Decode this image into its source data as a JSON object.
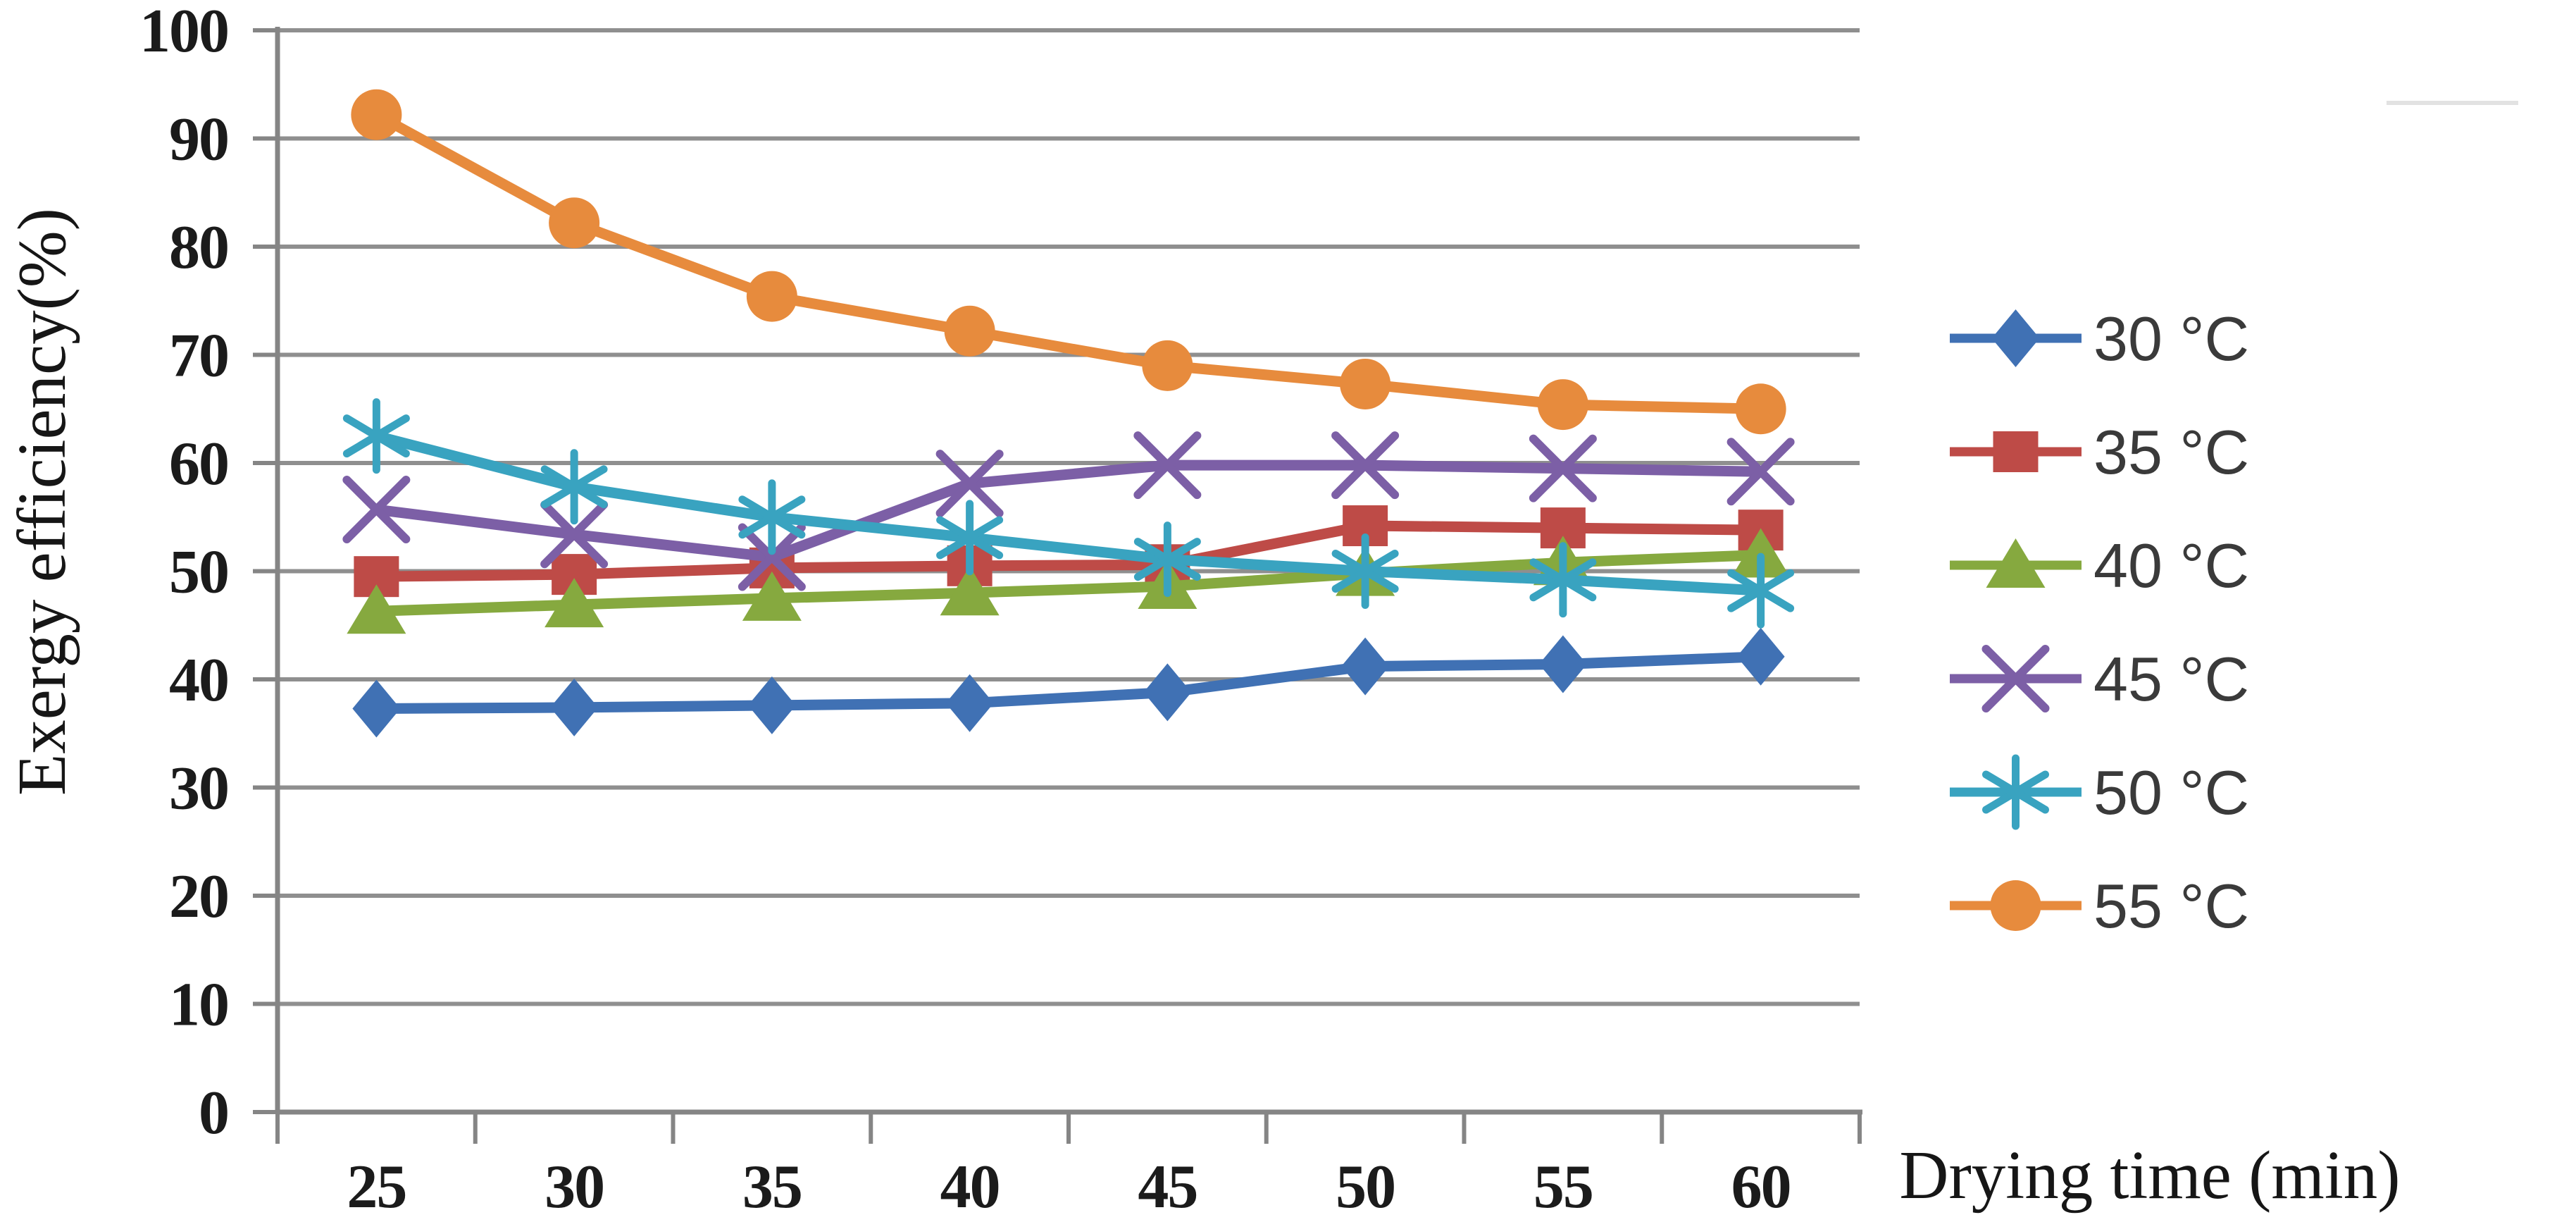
{
  "chart_data": {
    "type": "line",
    "title": "",
    "xlabel": "Drying time (min)",
    "ylabel": "Exergy efficiency(%)",
    "x_categories": [
      "25",
      "30",
      "35",
      "40",
      "45",
      "50",
      "55",
      "60"
    ],
    "y_ticks": [
      0,
      10,
      20,
      30,
      40,
      50,
      60,
      70,
      80,
      90,
      100
    ],
    "ylim": [
      0,
      100
    ],
    "grid": "horizontal",
    "legend_position": "right",
    "axis_color": "#858585",
    "gridline_color": "#8f8f8f",
    "tick_text_color": "#1b1b1b",
    "series": [
      {
        "name": "30 °C",
        "color": "#4071B4",
        "marker": "diamond",
        "values": [
          37.3,
          37.4,
          37.6,
          37.8,
          38.8,
          41.2,
          41.4,
          42.1
        ]
      },
      {
        "name": "35 °C",
        "color": "#BE4B47",
        "marker": "square",
        "values": [
          49.5,
          49.7,
          50.3,
          50.5,
          50.6,
          54.2,
          54.0,
          53.8
        ]
      },
      {
        "name": "40 °C",
        "color": "#86A93F",
        "marker": "triangle",
        "values": [
          46.3,
          46.9,
          47.5,
          48.0,
          48.6,
          49.8,
          50.8,
          51.5
        ]
      },
      {
        "name": "45 °C",
        "color": "#7C5FA6",
        "marker": "x",
        "values": [
          55.7,
          53.4,
          51.3,
          58.1,
          59.8,
          59.8,
          59.5,
          59.2
        ]
      },
      {
        "name": "50 °C",
        "color": "#39A3C0",
        "marker": "asterisk",
        "values": [
          62.5,
          57.8,
          55.0,
          53.1,
          51.1,
          50.0,
          49.2,
          48.2
        ]
      },
      {
        "name": "55 °C",
        "color": "#E78B3D",
        "marker": "circle",
        "values": [
          92.2,
          82.2,
          75.4,
          72.2,
          69.0,
          67.3,
          65.4,
          65.0
        ]
      }
    ]
  }
}
